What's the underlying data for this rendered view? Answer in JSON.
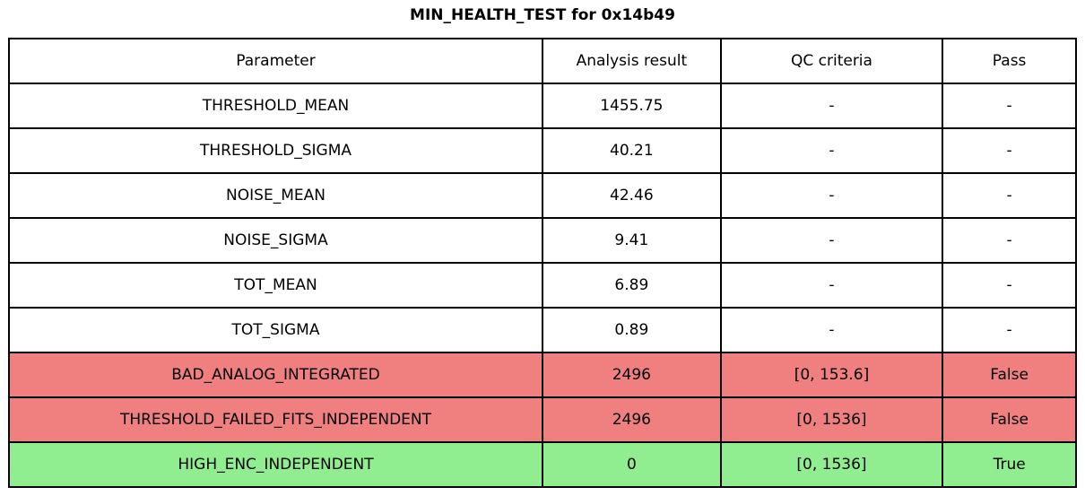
{
  "chart_data": {
    "type": "table",
    "title": "MIN_HEALTH_TEST for 0x14b49",
    "columns": [
      "Parameter",
      "Analysis result",
      "QC criteria",
      "Pass"
    ],
    "rows": [
      {
        "parameter": "THRESHOLD_MEAN",
        "result": "1455.75",
        "qc": "-",
        "pass": "-",
        "status": "neutral"
      },
      {
        "parameter": "THRESHOLD_SIGMA",
        "result": "40.21",
        "qc": "-",
        "pass": "-",
        "status": "neutral"
      },
      {
        "parameter": "NOISE_MEAN",
        "result": "42.46",
        "qc": "-",
        "pass": "-",
        "status": "neutral"
      },
      {
        "parameter": "NOISE_SIGMA",
        "result": "9.41",
        "qc": "-",
        "pass": "-",
        "status": "neutral"
      },
      {
        "parameter": "TOT_MEAN",
        "result": "6.89",
        "qc": "-",
        "pass": "-",
        "status": "neutral"
      },
      {
        "parameter": "TOT_SIGMA",
        "result": "0.89",
        "qc": "-",
        "pass": "-",
        "status": "neutral"
      },
      {
        "parameter": "BAD_ANALOG_INTEGRATED",
        "result": "2496",
        "qc": "[0, 153.6]",
        "pass": "False",
        "status": "fail"
      },
      {
        "parameter": "THRESHOLD_FAILED_FITS_INDEPENDENT",
        "result": "2496",
        "qc": "[0, 1536]",
        "pass": "False",
        "status": "fail"
      },
      {
        "parameter": "HIGH_ENC_INDEPENDENT",
        "result": "0",
        "qc": "[0, 1536]",
        "pass": "True",
        "status": "pass"
      }
    ],
    "colors": {
      "fail_row": "#f08080",
      "pass_row": "#90ee90",
      "neutral_row": "#ffffff",
      "border": "#000000"
    },
    "layout": {
      "grid": "full-borders",
      "header_position": "top",
      "text_align": "center"
    }
  }
}
